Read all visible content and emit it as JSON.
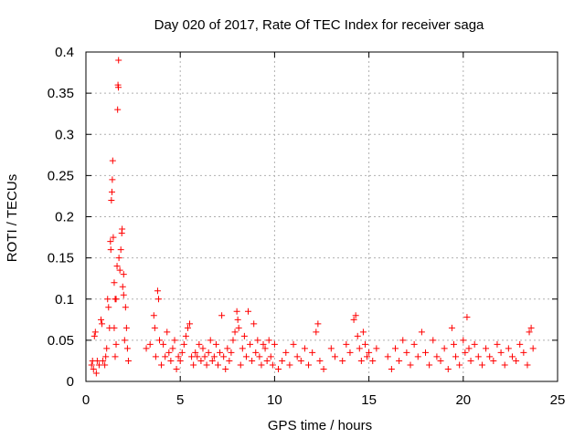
{
  "chart_data": {
    "type": "scatter",
    "title": "Day 020 of 2017, Rate Of TEC Index for receiver saga",
    "xlabel": "GPS time / hours",
    "ylabel": "ROTI / TECUs",
    "xlim": [
      0,
      25
    ],
    "ylim": [
      0,
      0.4
    ],
    "x_ticks": [
      0,
      5,
      10,
      15,
      20,
      25
    ],
    "x_tick_labels": [
      "0",
      "5",
      "10",
      "15",
      "20",
      "25"
    ],
    "y_ticks": [
      0,
      0.05,
      0.1,
      0.15,
      0.2,
      0.25,
      0.3,
      0.35,
      0.4
    ],
    "y_tick_labels": [
      "0",
      "0.05",
      "0.1",
      "0.15",
      "0.2",
      "0.25",
      "0.3",
      "0.35",
      "0.4"
    ],
    "grid": true,
    "marker": "+",
    "colors": {
      "series": "#ff0000",
      "grid": "#b0b0b0",
      "axis": "#000000"
    },
    "series": [
      {
        "name": "ROTI",
        "points": [
          [
            0.3,
            0.02
          ],
          [
            0.35,
            0.025
          ],
          [
            0.4,
            0.015
          ],
          [
            0.45,
            0.055
          ],
          [
            0.5,
            0.06
          ],
          [
            0.55,
            0.01
          ],
          [
            0.6,
            0.025
          ],
          [
            0.7,
            0.02
          ],
          [
            0.8,
            0.075
          ],
          [
            0.85,
            0.07
          ],
          [
            0.9,
            0.025
          ],
          [
            1.0,
            0.02
          ],
          [
            1.05,
            0.03
          ],
          [
            1.1,
            0.04
          ],
          [
            1.15,
            0.1
          ],
          [
            1.2,
            0.09
          ],
          [
            1.25,
            0.065
          ],
          [
            1.3,
            0.17
          ],
          [
            1.32,
            0.16
          ],
          [
            1.35,
            0.22
          ],
          [
            1.38,
            0.23
          ],
          [
            1.4,
            0.245
          ],
          [
            1.42,
            0.268
          ],
          [
            1.45,
            0.175
          ],
          [
            1.5,
            0.065
          ],
          [
            1.55,
            0.03
          ],
          [
            1.6,
            0.1
          ],
          [
            1.65,
            0.14
          ],
          [
            1.68,
            0.33
          ],
          [
            1.7,
            0.36
          ],
          [
            1.72,
            0.357
          ],
          [
            1.73,
            0.39
          ],
          [
            1.75,
            0.15
          ],
          [
            1.8,
            0.135
          ],
          [
            1.85,
            0.16
          ],
          [
            1.9,
            0.18
          ],
          [
            1.92,
            0.185
          ],
          [
            1.95,
            0.115
          ],
          [
            2.0,
            0.13
          ],
          [
            2.05,
            0.05
          ],
          [
            2.1,
            0.09
          ],
          [
            2.15,
            0.065
          ],
          [
            2.2,
            0.04
          ],
          [
            2.25,
            0.025
          ],
          [
            1.6,
            0.045
          ],
          [
            1.5,
            0.12
          ],
          [
            1.55,
            0.1
          ],
          [
            2.0,
            0.105
          ],
          [
            3.2,
            0.04
          ],
          [
            3.4,
            0.045
          ],
          [
            3.6,
            0.08
          ],
          [
            3.65,
            0.065
          ],
          [
            3.7,
            0.03
          ],
          [
            3.8,
            0.11
          ],
          [
            3.85,
            0.1
          ],
          [
            3.9,
            0.05
          ],
          [
            4.0,
            0.02
          ],
          [
            4.1,
            0.045
          ],
          [
            4.2,
            0.03
          ],
          [
            4.3,
            0.06
          ],
          [
            4.4,
            0.035
          ],
          [
            4.5,
            0.025
          ],
          [
            4.6,
            0.04
          ],
          [
            4.7,
            0.05
          ],
          [
            4.8,
            0.015
          ],
          [
            4.9,
            0.03
          ],
          [
            5.0,
            0.025
          ],
          [
            5.1,
            0.035
          ],
          [
            5.2,
            0.045
          ],
          [
            5.3,
            0.055
          ],
          [
            5.4,
            0.065
          ],
          [
            5.5,
            0.07
          ],
          [
            5.6,
            0.03
          ],
          [
            5.7,
            0.02
          ],
          [
            5.8,
            0.035
          ],
          [
            5.9,
            0.03
          ],
          [
            6.0,
            0.045
          ],
          [
            6.1,
            0.025
          ],
          [
            6.2,
            0.04
          ],
          [
            6.3,
            0.03
          ],
          [
            6.4,
            0.02
          ],
          [
            6.5,
            0.035
          ],
          [
            6.6,
            0.05
          ],
          [
            6.7,
            0.025
          ],
          [
            6.8,
            0.03
          ],
          [
            6.9,
            0.045
          ],
          [
            7.0,
            0.02
          ],
          [
            7.1,
            0.035
          ],
          [
            7.2,
            0.08
          ],
          [
            7.3,
            0.03
          ],
          [
            7.4,
            0.015
          ],
          [
            7.5,
            0.04
          ],
          [
            7.6,
            0.025
          ],
          [
            7.7,
            0.035
          ],
          [
            7.8,
            0.05
          ],
          [
            7.9,
            0.06
          ],
          [
            8.0,
            0.085
          ],
          [
            8.05,
            0.075
          ],
          [
            8.1,
            0.065
          ],
          [
            8.2,
            0.02
          ],
          [
            8.3,
            0.04
          ],
          [
            8.4,
            0.055
          ],
          [
            8.5,
            0.03
          ],
          [
            8.6,
            0.085
          ],
          [
            8.7,
            0.045
          ],
          [
            8.8,
            0.025
          ],
          [
            8.9,
            0.07
          ],
          [
            9.0,
            0.035
          ],
          [
            9.1,
            0.05
          ],
          [
            9.2,
            0.03
          ],
          [
            9.3,
            0.02
          ],
          [
            9.4,
            0.045
          ],
          [
            9.5,
            0.04
          ],
          [
            9.6,
            0.025
          ],
          [
            9.7,
            0.05
          ],
          [
            9.8,
            0.03
          ],
          [
            9.9,
            0.02
          ],
          [
            10.0,
            0.045
          ],
          [
            10.2,
            0.015
          ],
          [
            10.4,
            0.025
          ],
          [
            10.6,
            0.035
          ],
          [
            10.8,
            0.02
          ],
          [
            11.0,
            0.045
          ],
          [
            11.2,
            0.03
          ],
          [
            11.4,
            0.025
          ],
          [
            11.6,
            0.04
          ],
          [
            11.8,
            0.02
          ],
          [
            12.0,
            0.035
          ],
          [
            12.2,
            0.06
          ],
          [
            12.3,
            0.07
          ],
          [
            12.4,
            0.025
          ],
          [
            12.6,
            0.015
          ],
          [
            13.0,
            0.04
          ],
          [
            13.2,
            0.03
          ],
          [
            13.6,
            0.025
          ],
          [
            13.8,
            0.045
          ],
          [
            14.0,
            0.035
          ],
          [
            14.2,
            0.075
          ],
          [
            14.3,
            0.08
          ],
          [
            14.4,
            0.055
          ],
          [
            14.5,
            0.04
          ],
          [
            14.6,
            0.025
          ],
          [
            14.7,
            0.06
          ],
          [
            14.8,
            0.045
          ],
          [
            14.9,
            0.03
          ],
          [
            15.0,
            0.035
          ],
          [
            15.2,
            0.025
          ],
          [
            15.4,
            0.04
          ],
          [
            16.0,
            0.03
          ],
          [
            16.2,
            0.015
          ],
          [
            16.4,
            0.04
          ],
          [
            16.6,
            0.025
          ],
          [
            16.8,
            0.05
          ],
          [
            17.0,
            0.035
          ],
          [
            17.2,
            0.02
          ],
          [
            17.4,
            0.045
          ],
          [
            17.6,
            0.03
          ],
          [
            17.8,
            0.06
          ],
          [
            18.0,
            0.035
          ],
          [
            18.2,
            0.02
          ],
          [
            18.4,
            0.05
          ],
          [
            18.6,
            0.03
          ],
          [
            18.8,
            0.025
          ],
          [
            19.0,
            0.04
          ],
          [
            19.2,
            0.015
          ],
          [
            19.4,
            0.065
          ],
          [
            19.5,
            0.045
          ],
          [
            19.6,
            0.03
          ],
          [
            19.8,
            0.02
          ],
          [
            20.0,
            0.05
          ],
          [
            20.1,
            0.035
          ],
          [
            20.2,
            0.078
          ],
          [
            20.3,
            0.04
          ],
          [
            20.4,
            0.025
          ],
          [
            20.6,
            0.045
          ],
          [
            20.8,
            0.03
          ],
          [
            21.0,
            0.02
          ],
          [
            21.2,
            0.04
          ],
          [
            21.4,
            0.03
          ],
          [
            21.6,
            0.025
          ],
          [
            21.8,
            0.045
          ],
          [
            22.0,
            0.035
          ],
          [
            22.2,
            0.02
          ],
          [
            22.4,
            0.04
          ],
          [
            22.6,
            0.03
          ],
          [
            22.8,
            0.025
          ],
          [
            23.0,
            0.045
          ],
          [
            23.2,
            0.035
          ],
          [
            23.4,
            0.02
          ],
          [
            23.5,
            0.06
          ],
          [
            23.6,
            0.065
          ],
          [
            23.7,
            0.04
          ]
        ]
      }
    ]
  }
}
